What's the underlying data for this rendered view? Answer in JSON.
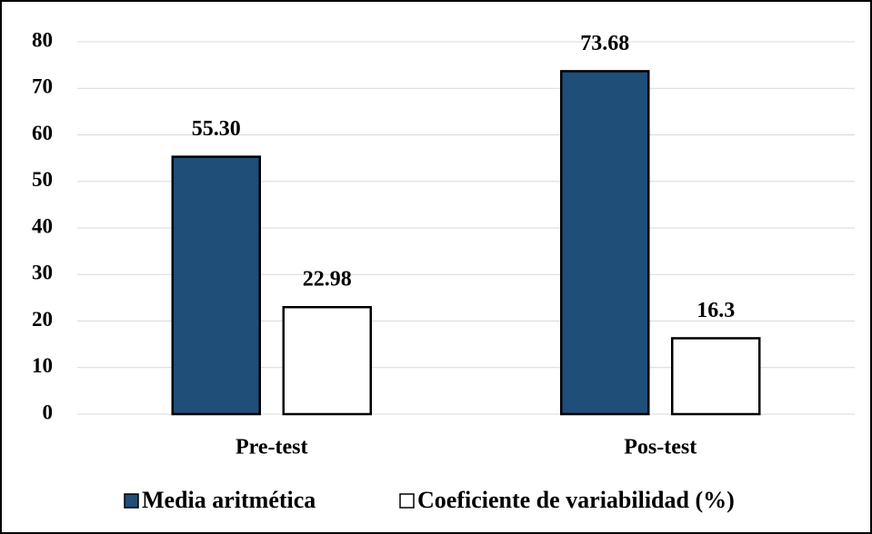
{
  "chart_data": {
    "type": "bar",
    "categories": [
      "Pre-test",
      "Pos-test"
    ],
    "series": [
      {
        "name": "Media aritmética",
        "color": "#1f4e79",
        "values": [
          55.3,
          73.68
        ],
        "value_labels": [
          "55.30",
          "73.68"
        ]
      },
      {
        "name": "Coeficiente de variabilidad (%)",
        "color": "#ffffff",
        "values": [
          22.98,
          16.3
        ],
        "value_labels": [
          "22.98",
          "16.3"
        ]
      }
    ],
    "ylim": [
      0,
      80
    ],
    "yticks": [
      0,
      10,
      20,
      30,
      40,
      50,
      60,
      70,
      80
    ],
    "grid": true,
    "legend": "bottom"
  }
}
